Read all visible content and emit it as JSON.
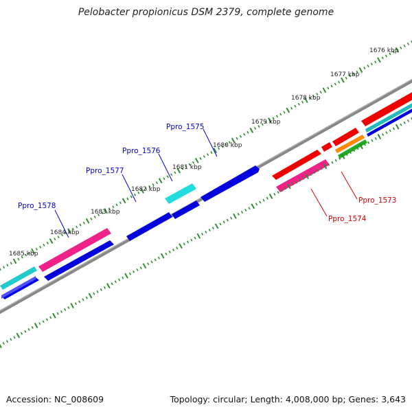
{
  "title": "Pelobacter propionicus DSM 2379, complete genome",
  "footer": {
    "accession": "Accession: NC_008609",
    "summary": "Topology: circular; Length: 4,008,000 bp; Genes: 3,643"
  },
  "colors": {
    "backbone": "#808080",
    "tick": "#2e8b2e",
    "label_forward": "#0000cc",
    "label_reverse": "#cc0000",
    "blue": "#0000ee",
    "cyan": "#22cccc",
    "magenta": "#ee2288",
    "red": "#ee0000",
    "orange": "#ff8800",
    "green": "#22aa22",
    "teal": "#22bbbb"
  },
  "scale_labels": [
    "1676 kbp",
    "1677 kbp",
    "1678 kbp",
    "1679 kbp",
    "1680 kbp",
    "1681 kbp",
    "1682 kbp",
    "1683 kbp",
    "1684 kbp",
    "1685 kbp"
  ],
  "gene_labels": [
    {
      "id": "Ppro_1575",
      "strand": "forward"
    },
    {
      "id": "Ppro_1576",
      "strand": "forward"
    },
    {
      "id": "Ppro_1577",
      "strand": "forward"
    },
    {
      "id": "Ppro_1578",
      "strand": "forward"
    },
    {
      "id": "Ppro_1573",
      "strand": "reverse"
    },
    {
      "id": "Ppro_1574",
      "strand": "reverse"
    }
  ]
}
